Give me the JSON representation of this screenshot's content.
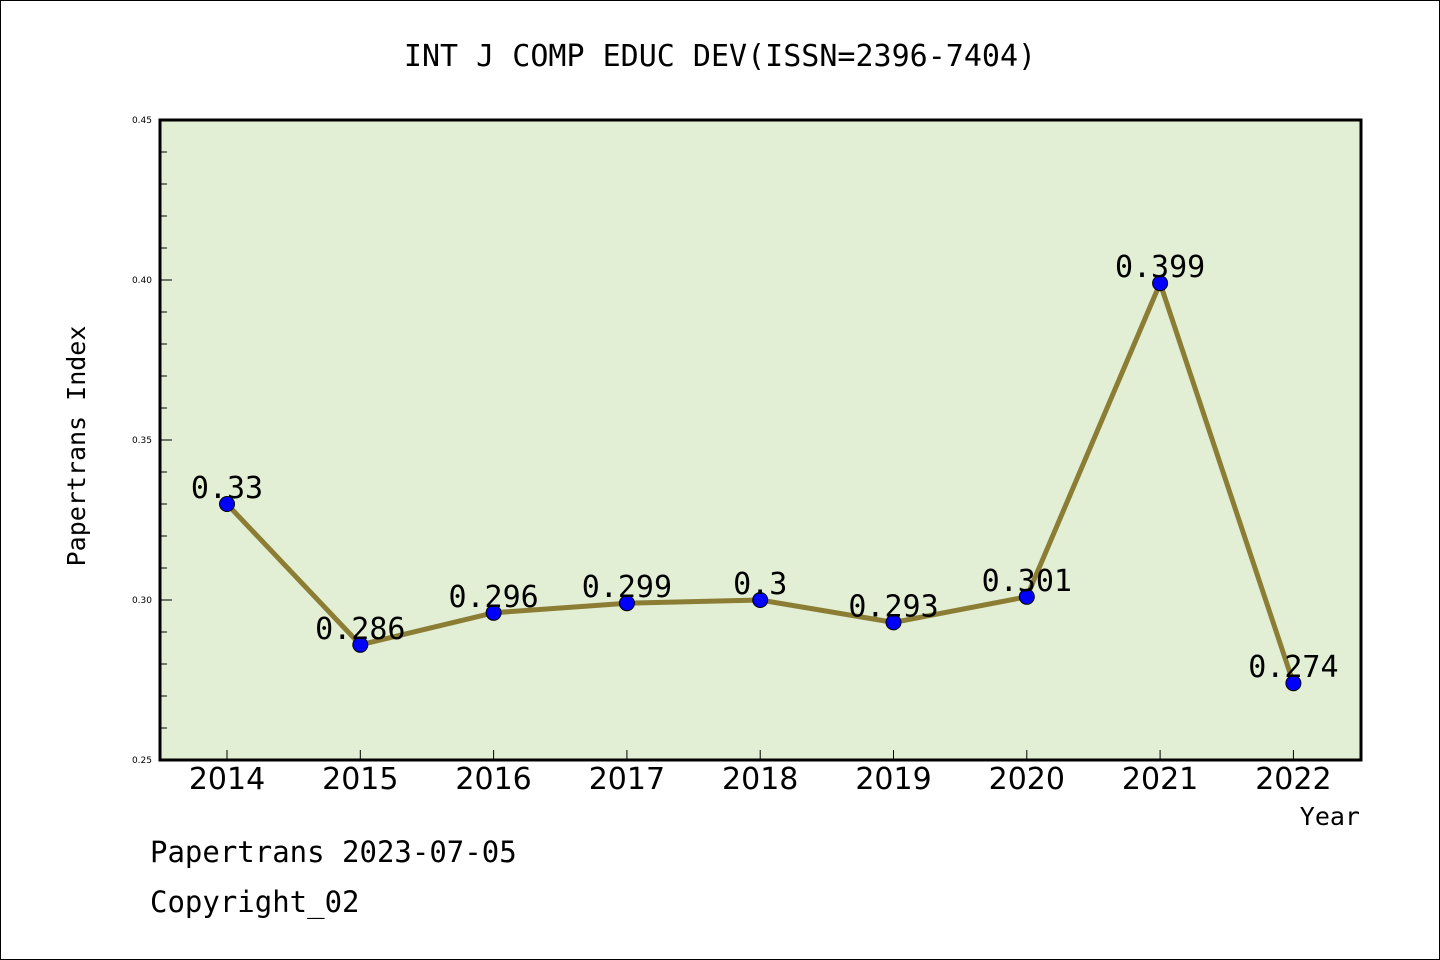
{
  "chart_data": {
    "type": "line",
    "title": "INT J COMP EDUC DEV(ISSN=2396-7404)",
    "xlabel": "Year",
    "ylabel": "Papertrans Index",
    "categories": [
      "2014",
      "2015",
      "2016",
      "2017",
      "2018",
      "2019",
      "2020",
      "2021",
      "2022"
    ],
    "series": [
      {
        "values": [
          0.33,
          0.286,
          0.296,
          0.299,
          0.3,
          0.293,
          0.301,
          0.399,
          0.274
        ],
        "labels": [
          "0.33",
          "0.286",
          "0.296",
          "0.299",
          "0.3",
          "0.293",
          "0.301",
          "0.399",
          "0.274"
        ]
      }
    ],
    "ylim": [
      0.25,
      0.45
    ],
    "yticks": [
      "0.25",
      "0.30",
      "0.35",
      "0.40",
      "0.45"
    ],
    "grid": false,
    "colors": {
      "plot_background": "#e2efd5",
      "line": "#8c7d35",
      "marker": "#0000ff",
      "axis": "#000000"
    }
  },
  "footer": {
    "date_line": "Papertrans 2023-07-05",
    "copyright": "Copyright_02"
  }
}
